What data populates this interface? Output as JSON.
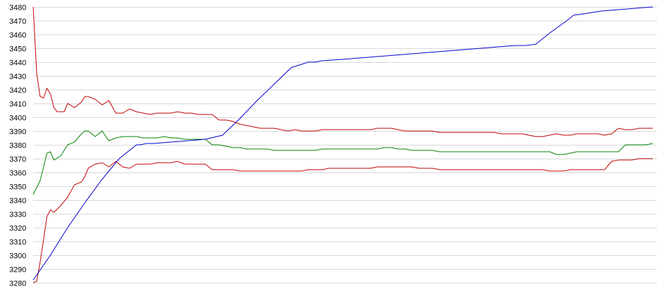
{
  "chart_data": {
    "type": "line",
    "title": "",
    "xlabel": "",
    "ylabel": "",
    "ylim": [
      3280,
      3480
    ],
    "yticks": [
      3280,
      3290,
      3300,
      3310,
      3320,
      3330,
      3340,
      3350,
      3360,
      3370,
      3380,
      3390,
      3400,
      3410,
      3420,
      3430,
      3440,
      3450,
      3460,
      3470,
      3480
    ],
    "grid": true,
    "xlim": [
      0,
      180
    ],
    "series": [
      {
        "color": "#c00000",
        "x": [
          0,
          1,
          2,
          3,
          4,
          5,
          6,
          7,
          8,
          9,
          10,
          12,
          14,
          15,
          16,
          18,
          20,
          22,
          24,
          26,
          28,
          30,
          32,
          34,
          36,
          38,
          40,
          42,
          44,
          46,
          48,
          50,
          52,
          54,
          56,
          58,
          60,
          62,
          64,
          66,
          68,
          70,
          72,
          74,
          76,
          78,
          80,
          82,
          84,
          86,
          88,
          90,
          92,
          94,
          96,
          98,
          100,
          102,
          104,
          106,
          108,
          110,
          112,
          114,
          116,
          118,
          120,
          122,
          124,
          126,
          128,
          130,
          132,
          134,
          136,
          138,
          140,
          142,
          144,
          146,
          148,
          150,
          152,
          154,
          156,
          158,
          160,
          162,
          164,
          166,
          168,
          170,
          172,
          174,
          176,
          178,
          180
        ],
        "y": [
          3480,
          3432,
          3415,
          3414,
          3421,
          3417,
          3407,
          3404,
          3404,
          3404,
          3410,
          3407,
          3411,
          3415,
          3415,
          3413,
          3409,
          3412,
          3403,
          3403,
          3406,
          3404,
          3403,
          3402,
          3403,
          3403,
          3403,
          3404,
          3403,
          3403,
          3402,
          3402,
          3402,
          3398,
          3398,
          3397,
          3395,
          3394,
          3393,
          3392,
          3392,
          3392,
          3391,
          3390,
          3391,
          3390,
          3390,
          3390,
          3391,
          3391,
          3391,
          3391,
          3391,
          3391,
          3391,
          3391,
          3392,
          3392,
          3392,
          3391,
          3390,
          3390,
          3390,
          3390,
          3390,
          3389,
          3389,
          3389,
          3389,
          3389,
          3389,
          3389,
          3389,
          3389,
          3388,
          3388,
          3388,
          3388,
          3387,
          3386,
          3386,
          3387,
          3388,
          3387,
          3387,
          3388,
          3388,
          3388,
          3388,
          3387,
          3388,
          3392,
          3391,
          3391,
          3392,
          3392,
          3392
        ]
      },
      {
        "color": "#008000",
        "x": [
          0,
          2,
          4,
          5,
          6,
          8,
          10,
          12,
          14,
          15,
          16,
          18,
          20,
          22,
          24,
          26,
          28,
          30,
          32,
          34,
          36,
          38,
          40,
          42,
          44,
          46,
          48,
          50,
          52,
          54,
          56,
          58,
          60,
          62,
          64,
          66,
          68,
          70,
          72,
          74,
          76,
          78,
          80,
          82,
          84,
          86,
          88,
          90,
          92,
          94,
          96,
          98,
          100,
          102,
          104,
          106,
          108,
          110,
          112,
          114,
          116,
          118,
          120,
          122,
          124,
          126,
          128,
          130,
          132,
          134,
          136,
          138,
          140,
          142,
          144,
          146,
          148,
          150,
          152,
          154,
          156,
          158,
          160,
          162,
          164,
          166,
          168,
          170,
          172,
          174,
          176,
          178,
          180
        ],
        "y": [
          3344,
          3354,
          3374,
          3375,
          3369,
          3372,
          3380,
          3382,
          3388,
          3390,
          3390,
          3386,
          3390,
          3383,
          3385,
          3386,
          3386,
          3386,
          3385,
          3385,
          3385,
          3386,
          3385,
          3385,
          3384,
          3384,
          3384,
          3384,
          3380,
          3380,
          3379,
          3378,
          3378,
          3377,
          3377,
          3377,
          3377,
          3376,
          3376,
          3376,
          3376,
          3376,
          3376,
          3376,
          3377,
          3377,
          3377,
          3377,
          3377,
          3377,
          3377,
          3377,
          3377,
          3378,
          3378,
          3377,
          3377,
          3376,
          3376,
          3376,
          3376,
          3375,
          3375,
          3375,
          3375,
          3375,
          3375,
          3375,
          3375,
          3375,
          3375,
          3375,
          3375,
          3375,
          3375,
          3375,
          3375,
          3375,
          3373,
          3373,
          3374,
          3375,
          3375,
          3375,
          3375,
          3375,
          3375,
          3375,
          3380,
          3380,
          3380,
          3380,
          3381
        ]
      },
      {
        "color": "#c00000",
        "x": [
          0,
          1,
          2,
          3,
          4,
          5,
          6,
          8,
          10,
          12,
          14,
          15,
          16,
          18,
          20,
          22,
          24,
          26,
          28,
          30,
          32,
          34,
          36,
          38,
          40,
          42,
          44,
          46,
          48,
          50,
          52,
          54,
          56,
          58,
          60,
          62,
          64,
          66,
          68,
          70,
          72,
          74,
          76,
          78,
          80,
          82,
          84,
          86,
          88,
          90,
          92,
          94,
          96,
          98,
          100,
          102,
          104,
          106,
          108,
          110,
          112,
          114,
          116,
          118,
          120,
          122,
          124,
          126,
          128,
          130,
          132,
          134,
          136,
          138,
          140,
          142,
          144,
          146,
          148,
          150,
          152,
          154,
          156,
          158,
          160,
          162,
          164,
          166,
          168,
          170,
          172,
          174,
          176,
          178,
          180
        ],
        "y": [
          3280,
          3281,
          3295,
          3311,
          3328,
          3333,
          3331,
          3336,
          3342,
          3351,
          3353,
          3357,
          3363,
          3366,
          3367,
          3364,
          3368,
          3364,
          3363,
          3366,
          3366,
          3366,
          3367,
          3367,
          3367,
          3368,
          3366,
          3366,
          3366,
          3366,
          3362,
          3362,
          3362,
          3362,
          3361,
          3361,
          3361,
          3361,
          3361,
          3361,
          3361,
          3361,
          3361,
          3361,
          3362,
          3362,
          3362,
          3363,
          3363,
          3363,
          3363,
          3363,
          3363,
          3363,
          3364,
          3364,
          3364,
          3364,
          3364,
          3364,
          3363,
          3363,
          3363,
          3362,
          3362,
          3362,
          3362,
          3362,
          3362,
          3362,
          3362,
          3362,
          3362,
          3362,
          3362,
          3362,
          3362,
          3362,
          3362,
          3361,
          3361,
          3361,
          3362,
          3362,
          3362,
          3362,
          3362,
          3362,
          3368,
          3369,
          3369,
          3369,
          3370,
          3370,
          3370
        ]
      },
      {
        "color": "#0000cc",
        "x": [
          0,
          5,
          10,
          15,
          20,
          25,
          30,
          31,
          33,
          35,
          40,
          45,
          50,
          55,
          60,
          65,
          70,
          75,
          80,
          82,
          84,
          90,
          100,
          110,
          120,
          130,
          140,
          143,
          146,
          150,
          155,
          157,
          160,
          165,
          170,
          175,
          180
        ],
        "y": [
          3282,
          3300,
          3320,
          3338,
          3355,
          3370,
          3380,
          3380,
          3381,
          3381,
          3382,
          3383,
          3384,
          3387,
          3399,
          3412,
          3424,
          3436,
          3440,
          3440,
          3441,
          3442,
          3444,
          3446,
          3448,
          3450,
          3452,
          3452,
          3453,
          3461,
          3470,
          3474,
          3475,
          3477,
          3478,
          3479,
          3480
        ]
      }
    ]
  }
}
